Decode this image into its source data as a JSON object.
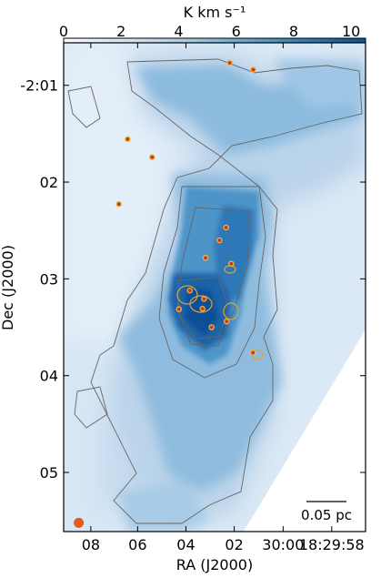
{
  "chart_data": {
    "type": "heatmap",
    "colorbar": {
      "label": "K km s⁻¹",
      "range": [
        0,
        10.5
      ],
      "ticks": [
        0,
        2,
        4,
        6,
        8,
        10
      ],
      "tick_labels": [
        "0",
        "2",
        "4",
        "6",
        "8",
        "10"
      ],
      "colormap": [
        "#f7fbff",
        "#deebf7",
        "#c6dbef",
        "#9ecae1",
        "#6baed6",
        "#4292c6",
        "#2171b5",
        "#08519c"
      ]
    },
    "xaxis": {
      "label": "RA (J2000)",
      "ticks": [
        {
          "label": "08",
          "frac": 0.09
        },
        {
          "label": "06",
          "frac": 0.245
        },
        {
          "label": "04",
          "frac": 0.405
        },
        {
          "label": "02",
          "frac": 0.565
        },
        {
          "label": "30:00",
          "frac": 0.727
        },
        {
          "label": "18:29:58",
          "frac": 0.888
        }
      ]
    },
    "yaxis": {
      "label": "Dec (J2000)",
      "ticks": [
        {
          "label": "-2:01",
          "frac": 0.087
        },
        {
          "label": "02",
          "frac": 0.285
        },
        {
          "label": "03",
          "frac": 0.483
        },
        {
          "label": "04",
          "frac": 0.681
        },
        {
          "label": "05",
          "frac": 0.879
        }
      ]
    },
    "scalebar": {
      "label": "0.05 pc"
    },
    "sources": [
      {
        "x": 0.55,
        "y": 0.041
      },
      {
        "x": 0.628,
        "y": 0.055
      },
      {
        "x": 0.212,
        "y": 0.197
      },
      {
        "x": 0.293,
        "y": 0.234
      },
      {
        "x": 0.183,
        "y": 0.33
      },
      {
        "x": 0.538,
        "y": 0.378
      },
      {
        "x": 0.516,
        "y": 0.404
      },
      {
        "x": 0.47,
        "y": 0.44
      },
      {
        "x": 0.555,
        "y": 0.452
      },
      {
        "x": 0.418,
        "y": 0.507
      },
      {
        "x": 0.465,
        "y": 0.524
      },
      {
        "x": 0.382,
        "y": 0.545
      },
      {
        "x": 0.46,
        "y": 0.544
      },
      {
        "x": 0.54,
        "y": 0.57
      },
      {
        "x": 0.49,
        "y": 0.582
      },
      {
        "x": 0.627,
        "y": 0.634
      }
    ],
    "beam": {
      "x": 0.05,
      "y": 0.982
    }
  }
}
